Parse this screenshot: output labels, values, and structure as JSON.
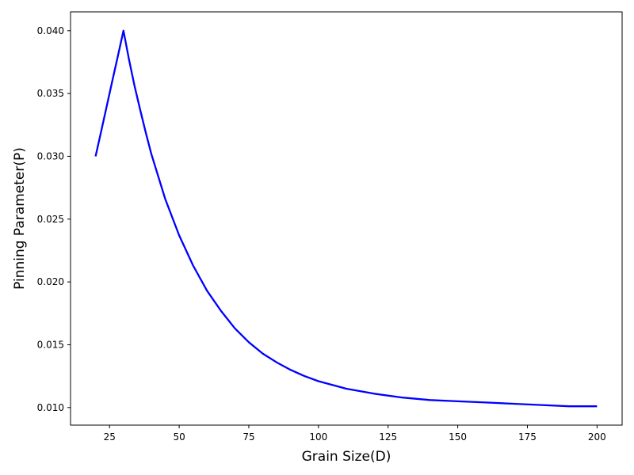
{
  "chart_data": {
    "type": "line",
    "title": "",
    "xlabel": "Grain Size(D)",
    "ylabel": "Pinning Parameter(P)",
    "xlim": [
      11,
      209
    ],
    "ylim": [
      0.0086,
      0.0415
    ],
    "x_ticks": [
      25,
      50,
      75,
      100,
      125,
      150,
      175,
      200
    ],
    "x_tick_labels": [
      "25",
      "50",
      "75",
      "100",
      "125",
      "150",
      "175",
      "200"
    ],
    "y_ticks": [
      0.01,
      0.015,
      0.02,
      0.025,
      0.03,
      0.035,
      0.04
    ],
    "y_tick_labels": [
      "0.010",
      "0.015",
      "0.020",
      "0.025",
      "0.030",
      "0.035",
      "0.040"
    ],
    "grid": false,
    "legend": "none",
    "series": [
      {
        "color": "#0000ff",
        "x": [
          20,
          22,
          24,
          26,
          28,
          30,
          32,
          34,
          36,
          38,
          40,
          45,
          50,
          55,
          60,
          65,
          70,
          75,
          80,
          85,
          90,
          95,
          100,
          110,
          120,
          130,
          140,
          150,
          160,
          170,
          180,
          190,
          200
        ],
        "y": [
          0.03,
          0.032,
          0.034,
          0.036,
          0.038,
          0.04,
          0.0377,
          0.0356,
          0.0337,
          0.0319,
          0.0302,
          0.0266,
          0.0237,
          0.0213,
          0.0193,
          0.0177,
          0.0163,
          0.0152,
          0.0143,
          0.0136,
          0.013,
          0.0125,
          0.0121,
          0.0115,
          0.0111,
          0.0108,
          0.0106,
          0.0105,
          0.0104,
          0.0103,
          0.0102,
          0.0101,
          0.0101
        ]
      }
    ]
  }
}
